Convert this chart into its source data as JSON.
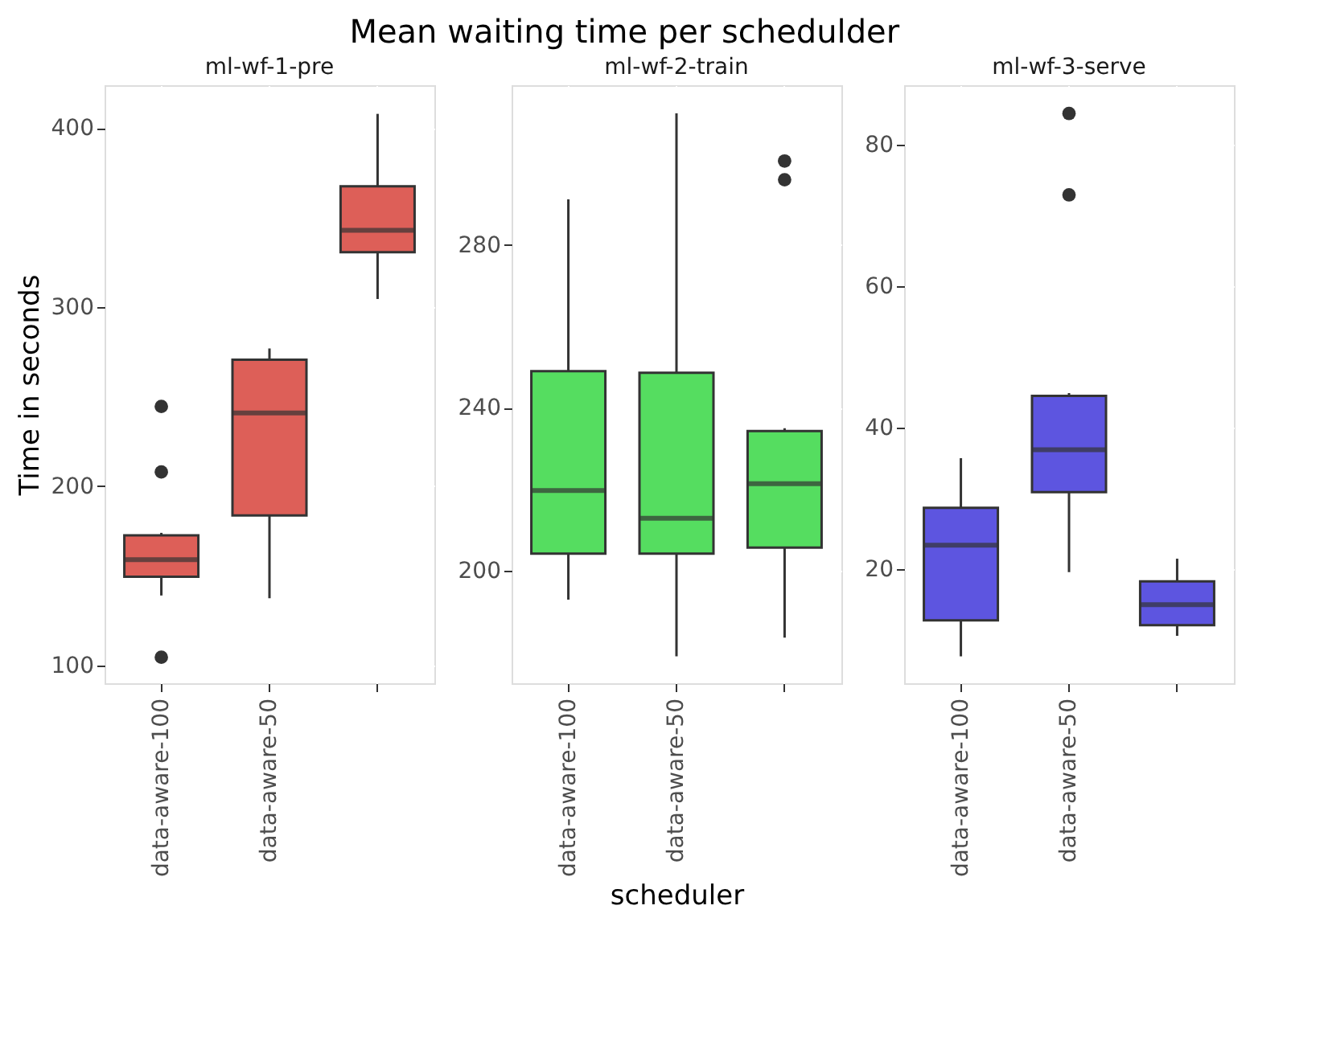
{
  "chart_data": [
    {
      "type": "box",
      "title": "ml-wf-1-pre",
      "annotations": [
        "Mean waiting time per schedulder"
      ],
      "ylabel": "Time in seconds",
      "categories": [
        "data-aware-100",
        "data-aware-50",
        null
      ],
      "ylim": [
        90,
        424
      ],
      "yticks": [
        100,
        200,
        300,
        400
      ],
      "grid": true,
      "series": [
        {
          "color": "#dd5f58",
          "boxes": [
            {
              "low": 139,
              "q1": 149.5,
              "median": 159,
              "q3": 172.6,
              "high": 174,
              "outliers": [
                104.5,
                208,
                244.6
              ]
            },
            {
              "low": 137.5,
              "q1": 183.7,
              "median": 241,
              "q3": 270.7,
              "high": 277
            },
            {
              "low": 304.6,
              "q1": 330.7,
              "median": 343,
              "q3": 367.6,
              "high": 408
            }
          ]
        }
      ]
    },
    {
      "type": "box",
      "title": "ml-wf-2-train",
      "xlabel": "scheduler",
      "categories": [
        "data-aware-100",
        "data-aware-50",
        null
      ],
      "ylim": [
        172.4,
        319.2
      ],
      "yticks": [
        200,
        240,
        280
      ],
      "grid": true,
      "series": [
        {
          "color": "#55dd60",
          "boxes": [
            {
              "low": 192.9,
              "q1": 204.2,
              "median": 219.7,
              "q3": 249,
              "high": 291.2
            },
            {
              "low": 179,
              "q1": 204.2,
              "median": 212.9,
              "q3": 248.6,
              "high": 312.3
            },
            {
              "low": 183.6,
              "q1": 205.7,
              "median": 221.4,
              "q3": 234.3,
              "high": 235,
              "outliers": [
                296,
                300.6
              ]
            }
          ]
        }
      ]
    },
    {
      "type": "box",
      "title": "ml-wf-3-serve",
      "categories": [
        "data-aware-100",
        "data-aware-50",
        null
      ],
      "ylim": [
        3.9,
        88.4
      ],
      "yticks": [
        20,
        40,
        60,
        80
      ],
      "grid": true,
      "series": [
        {
          "color": "#5d55e0",
          "boxes": [
            {
              "low": 7.7,
              "q1": 12.8,
              "median": 23.4,
              "q3": 28.7,
              "high": 35.7
            },
            {
              "low": 19.6,
              "q1": 30.9,
              "median": 36.9,
              "q3": 44.5,
              "high": 44.9,
              "outliers": [
                72.9,
                84.4
              ]
            },
            {
              "low": 10.6,
              "q1": 12.1,
              "median": 15,
              "q3": 18.3,
              "high": 21.5
            }
          ]
        }
      ]
    }
  ]
}
